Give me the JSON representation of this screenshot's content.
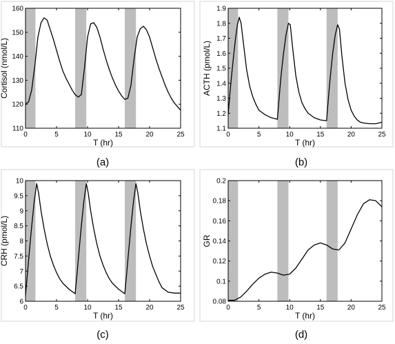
{
  "colors": {
    "panel_border": "#d4d4d4",
    "shade": "#bdbdbd",
    "line": "#000000",
    "axis": "#000000"
  },
  "panels": [
    {
      "caption": "(a)"
    },
    {
      "caption": "(b)"
    },
    {
      "caption": "(c)"
    },
    {
      "caption": "(d)"
    }
  ],
  "chart_data": [
    {
      "type": "line",
      "title": "",
      "xlabel": "T (hr)",
      "ylabel": "Cortisol (nmol/L)",
      "xlim": [
        0,
        25
      ],
      "ylim": [
        110,
        160
      ],
      "xticks": [
        0,
        5,
        10,
        15,
        20,
        25
      ],
      "yticks": [
        110,
        120,
        130,
        140,
        150,
        160
      ],
      "shaded_intervals": [
        [
          0,
          1.6
        ],
        [
          8,
          9.8
        ],
        [
          16,
          17.8
        ]
      ],
      "grid": false,
      "series": [
        {
          "x": [
            0,
            0.5,
            1,
            1.5,
            2,
            2.5,
            3,
            3.5,
            4,
            4.5,
            5,
            5.5,
            6,
            6.5,
            7,
            7.5,
            8,
            8.5,
            9,
            9.5,
            10,
            10.5,
            11,
            11.5,
            12,
            12.5,
            13,
            13.5,
            14,
            14.5,
            15,
            15.5,
            16,
            16.5,
            17,
            17.5,
            18,
            18.5,
            19,
            19.5,
            20,
            20.5,
            21,
            21.5,
            22,
            22.5,
            23,
            23.5,
            24,
            24.5,
            25
          ],
          "values": [
            120,
            121,
            126,
            136,
            148,
            154,
            156,
            155,
            151,
            147,
            142.5,
            138,
            134,
            131,
            128.5,
            126,
            124,
            123,
            124,
            135,
            148,
            153.5,
            154,
            152,
            148,
            143,
            138.5,
            134.5,
            131,
            128,
            125.5,
            123.5,
            122,
            122.5,
            128,
            139,
            148,
            151.5,
            152.5,
            151,
            148,
            143.5,
            139,
            135,
            131.5,
            128,
            125,
            122.5,
            120.5,
            119,
            117.5
          ]
        }
      ]
    },
    {
      "type": "line",
      "title": "",
      "xlabel": "T (hr)",
      "ylabel": "ACTH (pmol/L)",
      "xlim": [
        0,
        25
      ],
      "ylim": [
        1.1,
        1.9
      ],
      "xticks": [
        0,
        5,
        10,
        15,
        20,
        25
      ],
      "yticks": [
        1.1,
        1.2,
        1.3,
        1.4,
        1.5,
        1.6,
        1.7,
        1.8,
        1.9
      ],
      "shaded_intervals": [
        [
          0,
          1.6
        ],
        [
          8,
          9.8
        ],
        [
          16,
          17.8
        ]
      ],
      "grid": false,
      "series": [
        {
          "x": [
            0,
            0.3,
            0.6,
            0.9,
            1.2,
            1.5,
            1.8,
            2.1,
            2.5,
            3,
            3.5,
            4,
            4.5,
            5,
            6,
            7,
            8,
            8.3,
            8.6,
            9,
            9.4,
            9.8,
            10.1,
            10.5,
            11,
            11.5,
            12,
            12.5,
            13,
            14,
            15,
            16,
            16.3,
            16.6,
            17,
            17.4,
            17.8,
            18.1,
            18.5,
            19,
            19.5,
            20,
            20.5,
            21,
            21.5,
            22,
            23,
            24,
            25
          ],
          "values": [
            1.19,
            1.34,
            1.47,
            1.59,
            1.7,
            1.79,
            1.84,
            1.8,
            1.66,
            1.49,
            1.38,
            1.31,
            1.26,
            1.22,
            1.19,
            1.17,
            1.16,
            1.31,
            1.45,
            1.6,
            1.72,
            1.8,
            1.79,
            1.63,
            1.45,
            1.34,
            1.27,
            1.23,
            1.2,
            1.17,
            1.155,
            1.15,
            1.3,
            1.44,
            1.6,
            1.72,
            1.79,
            1.76,
            1.58,
            1.4,
            1.29,
            1.22,
            1.18,
            1.155,
            1.14,
            1.135,
            1.13,
            1.13,
            1.14
          ]
        }
      ]
    },
    {
      "type": "line",
      "title": "",
      "xlabel": "T (hr)",
      "ylabel": "CRH (pmol/L)",
      "xlim": [
        0,
        25
      ],
      "ylim": [
        6,
        10
      ],
      "xticks": [
        0,
        5,
        10,
        15,
        20,
        25
      ],
      "yticks": [
        6,
        6.5,
        7,
        7.5,
        8,
        8.5,
        9,
        9.5,
        10
      ],
      "shaded_intervals": [
        [
          0,
          1.6
        ],
        [
          8,
          9.8
        ],
        [
          16,
          17.8
        ]
      ],
      "grid": false,
      "series": [
        {
          "x": [
            0,
            0.3,
            0.6,
            1,
            1.4,
            1.8,
            2.1,
            2.5,
            3,
            3.5,
            4,
            4.5,
            5,
            5.5,
            6,
            7,
            8,
            8.3,
            8.6,
            9,
            9.4,
            9.8,
            10.1,
            10.5,
            11,
            11.5,
            12,
            12.5,
            13,
            13.5,
            14,
            15,
            16,
            16.3,
            16.6,
            17,
            17.4,
            17.8,
            18.1,
            18.5,
            19,
            19.5,
            20,
            20.5,
            21,
            21.5,
            22,
            23,
            24,
            25
          ],
          "values": [
            6.2,
            6.9,
            7.6,
            8.5,
            9.3,
            9.9,
            9.6,
            9.0,
            8.4,
            7.9,
            7.5,
            7.2,
            6.95,
            6.75,
            6.6,
            6.4,
            6.25,
            6.9,
            7.6,
            8.5,
            9.3,
            9.9,
            9.6,
            9.0,
            8.4,
            7.9,
            7.5,
            7.2,
            6.95,
            6.75,
            6.6,
            6.4,
            6.25,
            6.9,
            7.6,
            8.5,
            9.3,
            9.9,
            9.6,
            9.0,
            8.4,
            7.9,
            7.5,
            7.15,
            6.9,
            6.65,
            6.45,
            6.3,
            6.27,
            6.27
          ]
        }
      ]
    },
    {
      "type": "line",
      "title": "",
      "xlabel": "T (hr)",
      "ylabel": "GR",
      "xlim": [
        0,
        25
      ],
      "ylim": [
        0.08,
        0.2
      ],
      "xticks": [
        0,
        5,
        10,
        15,
        20,
        25
      ],
      "yticks": [
        0.08,
        0.1,
        0.12,
        0.14,
        0.16,
        0.18,
        0.2
      ],
      "shaded_intervals": [
        [
          0,
          1.6
        ],
        [
          8,
          9.8
        ],
        [
          16,
          17.8
        ]
      ],
      "grid": false,
      "series": [
        {
          "x": [
            0,
            1,
            2,
            3,
            4,
            5,
            6,
            7,
            8,
            9,
            10,
            11,
            12,
            13,
            14,
            15,
            16,
            17,
            18,
            19,
            20,
            21,
            22,
            23,
            24,
            25
          ],
          "values": [
            0.081,
            0.081,
            0.084,
            0.09,
            0.097,
            0.103,
            0.107,
            0.109,
            0.108,
            0.106,
            0.107,
            0.113,
            0.122,
            0.131,
            0.136,
            0.138,
            0.136,
            0.132,
            0.131,
            0.138,
            0.152,
            0.166,
            0.177,
            0.181,
            0.18,
            0.174
          ]
        }
      ]
    }
  ]
}
